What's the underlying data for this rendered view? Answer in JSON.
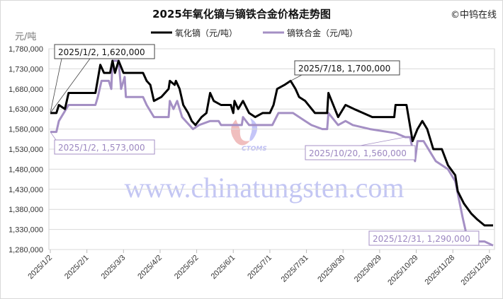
{
  "chart_data": {
    "type": "line",
    "title": "2025年氧化镝与镝铁合金价格走势图",
    "copyright": "©中钨在线",
    "ylabel": "元/吨",
    "xlabel": "",
    "ylim": [
      1280000,
      1780000
    ],
    "ytick_step": 50000,
    "yticks": [
      "1,280,000",
      "1,330,000",
      "1,380,000",
      "1,430,000",
      "1,480,000",
      "1,530,000",
      "1,580,000",
      "1,630,000",
      "1,680,000",
      "1,730,000",
      "1,780,000"
    ],
    "xticks": [
      "2025/1/2",
      "2025/2/1",
      "2025/3/3",
      "2025/4/2",
      "2025/5/2",
      "2025/6/1",
      "2025/7/1",
      "2025/7/31",
      "2025/8/30",
      "2025/9/29",
      "2025/10/29",
      "2025/11/28",
      "2025/12/28"
    ],
    "xlim": [
      "2025-01-02",
      "2025-12-31"
    ],
    "grid": "horizontal",
    "legend_position": "top",
    "watermark": "www.chinatungsten.com",
    "logo_text": "CTOMS",
    "series": [
      {
        "name": "氧化镝（元/吨）",
        "color": "#000000",
        "points": [
          [
            "2025-01-02",
            1620000
          ],
          [
            "2025-01-07",
            1620000
          ],
          [
            "2025-01-09",
            1640000
          ],
          [
            "2025-01-14",
            1630000
          ],
          [
            "2025-01-17",
            1670000
          ],
          [
            "2025-02-08",
            1670000
          ],
          [
            "2025-02-12",
            1740000
          ],
          [
            "2025-02-15",
            1720000
          ],
          [
            "2025-02-20",
            1720000
          ],
          [
            "2025-02-22",
            1750000
          ],
          [
            "2025-02-24",
            1720000
          ],
          [
            "2025-02-27",
            1750000
          ],
          [
            "2025-03-03",
            1720000
          ],
          [
            "2025-03-19",
            1720000
          ],
          [
            "2025-03-22",
            1700000
          ],
          [
            "2025-03-25",
            1690000
          ],
          [
            "2025-03-28",
            1650000
          ],
          [
            "2025-04-03",
            1660000
          ],
          [
            "2025-04-09",
            1680000
          ],
          [
            "2025-04-10",
            1700000
          ],
          [
            "2025-04-14",
            1690000
          ],
          [
            "2025-04-15",
            1700000
          ],
          [
            "2025-04-18",
            1680000
          ],
          [
            "2025-04-21",
            1640000
          ],
          [
            "2025-04-25",
            1620000
          ],
          [
            "2025-04-28",
            1600000
          ],
          [
            "2025-05-01",
            1590000
          ],
          [
            "2025-05-06",
            1610000
          ],
          [
            "2025-05-10",
            1620000
          ],
          [
            "2025-05-13",
            1670000
          ],
          [
            "2025-05-16",
            1650000
          ],
          [
            "2025-05-22",
            1640000
          ],
          [
            "2025-05-30",
            1640000
          ],
          [
            "2025-06-01",
            1620000
          ],
          [
            "2025-06-02",
            1650000
          ],
          [
            "2025-06-05",
            1630000
          ],
          [
            "2025-06-09",
            1650000
          ],
          [
            "2025-06-14",
            1620000
          ],
          [
            "2025-06-19",
            1610000
          ],
          [
            "2025-06-25",
            1620000
          ],
          [
            "2025-07-01",
            1620000
          ],
          [
            "2025-07-04",
            1640000
          ],
          [
            "2025-07-07",
            1680000
          ],
          [
            "2025-07-13",
            1690000
          ],
          [
            "2025-07-18",
            1700000
          ],
          [
            "2025-07-22",
            1680000
          ],
          [
            "2025-07-25",
            1660000
          ],
          [
            "2025-07-30",
            1650000
          ],
          [
            "2025-08-07",
            1620000
          ],
          [
            "2025-08-17",
            1620000
          ],
          [
            "2025-08-18",
            1670000
          ],
          [
            "2025-08-26",
            1610000
          ],
          [
            "2025-09-01",
            1640000
          ],
          [
            "2025-09-08",
            1630000
          ],
          [
            "2025-09-23",
            1610000
          ],
          [
            "2025-10-11",
            1610000
          ],
          [
            "2025-10-12",
            1640000
          ],
          [
            "2025-10-21",
            1640000
          ],
          [
            "2025-10-26",
            1550000
          ],
          [
            "2025-10-30",
            1580000
          ],
          [
            "2025-11-03",
            1600000
          ],
          [
            "2025-11-07",
            1580000
          ],
          [
            "2025-11-12",
            1530000
          ],
          [
            "2025-11-19",
            1530000
          ],
          [
            "2025-11-24",
            1490000
          ],
          [
            "2025-11-30",
            1465000
          ],
          [
            "2025-12-02",
            1425000
          ],
          [
            "2025-12-07",
            1395000
          ],
          [
            "2025-12-13",
            1370000
          ],
          [
            "2025-12-18",
            1355000
          ],
          [
            "2025-12-24",
            1340000
          ],
          [
            "2025-12-31",
            1340000
          ]
        ]
      },
      {
        "name": "镝铁合金（元/吨）",
        "color": "#a48fc4",
        "points": [
          [
            "2025-01-02",
            1573000
          ],
          [
            "2025-01-07",
            1573000
          ],
          [
            "2025-01-09",
            1600000
          ],
          [
            "2025-01-17",
            1640000
          ],
          [
            "2025-02-08",
            1640000
          ],
          [
            "2025-02-10",
            1660000
          ],
          [
            "2025-02-13",
            1700000
          ],
          [
            "2025-02-19",
            1700000
          ],
          [
            "2025-02-21",
            1680000
          ],
          [
            "2025-02-22",
            1750000
          ],
          [
            "2025-02-27",
            1750000
          ],
          [
            "2025-03-01",
            1680000
          ],
          [
            "2025-03-04",
            1710000
          ],
          [
            "2025-03-05",
            1660000
          ],
          [
            "2025-03-19",
            1660000
          ],
          [
            "2025-03-22",
            1640000
          ],
          [
            "2025-03-28",
            1610000
          ],
          [
            "2025-04-09",
            1610000
          ],
          [
            "2025-04-10",
            1650000
          ],
          [
            "2025-04-13",
            1630000
          ],
          [
            "2025-04-16",
            1650000
          ],
          [
            "2025-04-20",
            1610000
          ],
          [
            "2025-04-29",
            1580000
          ],
          [
            "2025-05-04",
            1590000
          ],
          [
            "2025-05-13",
            1600000
          ],
          [
            "2025-05-20",
            1600000
          ],
          [
            "2025-05-22",
            1590000
          ],
          [
            "2025-06-08",
            1590000
          ],
          [
            "2025-06-09",
            1610000
          ],
          [
            "2025-06-14",
            1590000
          ],
          [
            "2025-07-03",
            1590000
          ],
          [
            "2025-07-08",
            1620000
          ],
          [
            "2025-07-20",
            1620000
          ],
          [
            "2025-07-30",
            1600000
          ],
          [
            "2025-08-04",
            1590000
          ],
          [
            "2025-08-13",
            1580000
          ],
          [
            "2025-08-17",
            1580000
          ],
          [
            "2025-08-18",
            1620000
          ],
          [
            "2025-08-26",
            1590000
          ],
          [
            "2025-09-01",
            1600000
          ],
          [
            "2025-09-07",
            1590000
          ],
          [
            "2025-09-21",
            1580000
          ],
          [
            "2025-10-12",
            1570000
          ],
          [
            "2025-10-20",
            1560000
          ],
          [
            "2025-10-24",
            1560000
          ],
          [
            "2025-10-28",
            1500000
          ],
          [
            "2025-10-30",
            1550000
          ],
          [
            "2025-11-04",
            1550000
          ],
          [
            "2025-11-10",
            1520000
          ],
          [
            "2025-11-14",
            1500000
          ],
          [
            "2025-11-24",
            1480000
          ],
          [
            "2025-11-30",
            1450000
          ],
          [
            "2025-12-06",
            1360000
          ],
          [
            "2025-12-09",
            1320000
          ],
          [
            "2025-12-15",
            1300000
          ],
          [
            "2025-12-24",
            1300000
          ],
          [
            "2025-12-31",
            1290000
          ]
        ]
      }
    ],
    "annotations": [
      {
        "text": "2025/1/2, 1,620,000",
        "date": "2025-01-02",
        "value": 1620000,
        "series": 0
      },
      {
        "text": "2025/7/18, 1,700,000",
        "date": "2025-07-18",
        "value": 1700000,
        "series": 0
      },
      {
        "text": "2025/1/2, 1,573,000",
        "date": "2025-01-02",
        "value": 1573000,
        "series": 1
      },
      {
        "text": "2025/10/20, 1,560,000",
        "date": "2025-10-20",
        "value": 1560000,
        "series": 1
      },
      {
        "text": "2025/12/31, 1,290,000",
        "date": "2025-12-31",
        "value": 1290000,
        "series": 1
      }
    ]
  }
}
